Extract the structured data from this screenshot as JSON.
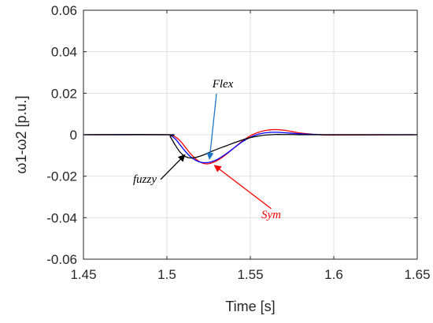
{
  "chart_data": {
    "type": "line",
    "title": "",
    "xlabel": "Time [s]",
    "ylabel": "ω1-ω2 [p.u.]",
    "xlim": [
      1.45,
      1.65
    ],
    "ylim": [
      -0.06,
      0.06
    ],
    "xticks": [
      "1.45",
      "1.5",
      "1.55",
      "1.6",
      "1.65"
    ],
    "yticks": [
      "0.06",
      "0.04",
      "0.02",
      "0",
      "-0.02",
      "-0.04",
      "-0.06"
    ],
    "grid": true,
    "colors": {
      "fuzzy": "#000000",
      "Flex": "#0000ff",
      "Sym": "#ff0000",
      "flex_arrow": "#1f77c8",
      "sym_arrow": "#ff0000",
      "fuzzy_arrow": "#000000"
    },
    "series": [
      {
        "name": "fuzzy",
        "x": [
          1.45,
          1.5,
          1.502,
          1.505,
          1.508,
          1.511,
          1.514,
          1.517,
          1.52,
          1.523,
          1.526,
          1.53,
          1.535,
          1.54,
          1.545,
          1.55,
          1.555,
          1.56,
          1.565,
          1.57,
          1.575,
          1.58,
          1.59,
          1.6,
          1.65
        ],
        "y": [
          0,
          0,
          -0.001,
          -0.005,
          -0.0085,
          -0.0105,
          -0.0112,
          -0.011,
          -0.0103,
          -0.0094,
          -0.0083,
          -0.007,
          -0.0055,
          -0.004,
          -0.0026,
          -0.0014,
          -0.0006,
          -0.0001,
          0.0001,
          0.0001,
          0.0001,
          0.0,
          0.0,
          0.0,
          0.0
        ]
      },
      {
        "name": "Flex",
        "x": [
          1.45,
          1.5,
          1.502,
          1.505,
          1.508,
          1.511,
          1.514,
          1.517,
          1.52,
          1.523,
          1.526,
          1.53,
          1.535,
          1.54,
          1.545,
          1.55,
          1.555,
          1.56,
          1.565,
          1.57,
          1.575,
          1.58,
          1.59,
          1.6,
          1.65
        ],
        "y": [
          0,
          0,
          -0.0003,
          -0.002,
          -0.005,
          -0.008,
          -0.0105,
          -0.0122,
          -0.0132,
          -0.0135,
          -0.0132,
          -0.012,
          -0.0095,
          -0.0065,
          -0.0035,
          -0.0012,
          0.0003,
          0.001,
          0.0012,
          0.001,
          0.0007,
          0.0004,
          0.0001,
          0.0,
          0.0
        ]
      },
      {
        "name": "Sym",
        "x": [
          1.45,
          1.5,
          1.502,
          1.505,
          1.508,
          1.511,
          1.514,
          1.517,
          1.52,
          1.523,
          1.526,
          1.53,
          1.535,
          1.54,
          1.545,
          1.55,
          1.555,
          1.56,
          1.565,
          1.57,
          1.575,
          1.58,
          1.59,
          1.6,
          1.65
        ],
        "y": [
          0,
          0,
          -0.0001,
          -0.001,
          -0.003,
          -0.006,
          -0.009,
          -0.0115,
          -0.0132,
          -0.014,
          -0.0138,
          -0.0125,
          -0.0098,
          -0.0065,
          -0.0032,
          -0.0005,
          0.0012,
          0.0022,
          0.0025,
          0.0022,
          0.0015,
          0.0008,
          0.0001,
          -0.0002,
          0.0
        ]
      }
    ],
    "annotations": [
      {
        "text": "Flex",
        "x": 1.5335,
        "y": 0.0228,
        "arrow_to": [
          1.5255,
          -0.0118
        ]
      },
      {
        "text": "fuzzy",
        "x": 1.4868,
        "y": -0.0231,
        "arrow_to": [
          1.5108,
          -0.0097
        ]
      },
      {
        "text": "Sym",
        "x": 1.5625,
        "y": -0.0402,
        "arrow_to": [
          1.5285,
          -0.0148
        ]
      }
    ]
  }
}
